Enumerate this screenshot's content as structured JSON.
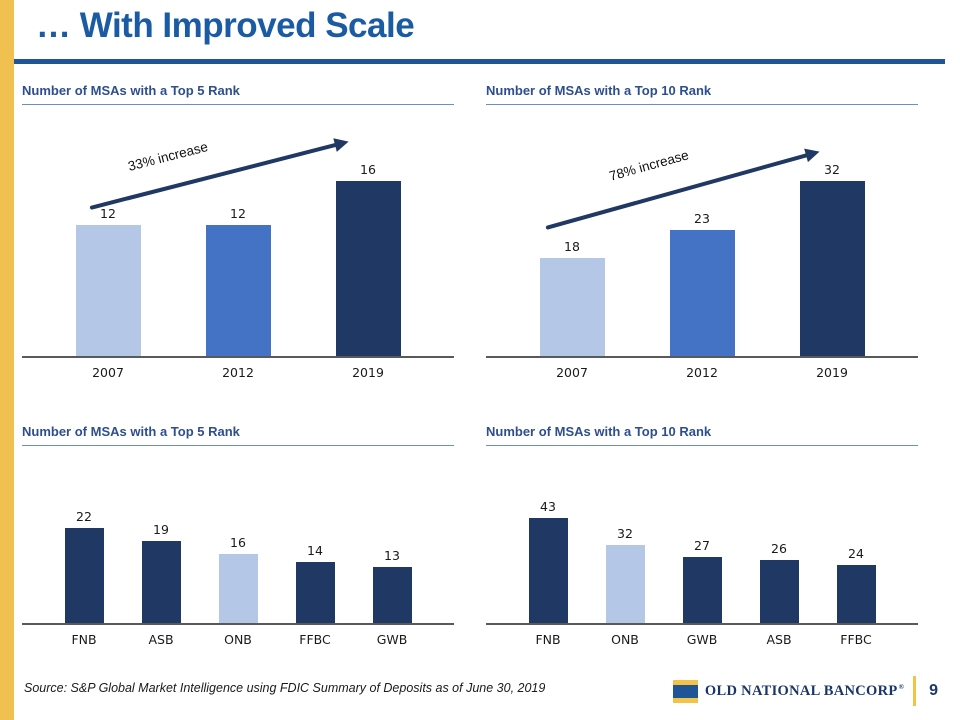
{
  "slide": {
    "title": "… With Improved Scale",
    "page_number": "9",
    "source": "Source: S&P Global Market Intelligence using FDIC Summary of Deposits as of June 30, 2019",
    "logo_text": "OLD NATIONAL BANCORP",
    "logo_reg_mark": "®"
  },
  "colors": {
    "accent_gold": "#F0C151",
    "title_blue": "#1A5BA4",
    "title_rule_blue": "#1F5597",
    "chart_header_blue": "#2E4E8F",
    "bar_light_blue": "#B4C7E7",
    "bar_medium_blue": "#4472C4",
    "bar_dark_navy": "#1F3864",
    "arrow_navy": "#1F3864",
    "axis_gray": "#595959"
  },
  "chart_data": [
    {
      "id": "top5-by-year",
      "type": "bar",
      "title": "Number of MSAs with a Top 5 Rank",
      "categories": [
        "2007",
        "2012",
        "2019"
      ],
      "values": [
        12,
        12,
        16
      ],
      "bar_colors": [
        "#B4C7E7",
        "#4472C4",
        "#1F3864"
      ],
      "annotation": "33% increase",
      "ylim": [
        0,
        20
      ],
      "grid": false,
      "legend": "none",
      "data_labels": true
    },
    {
      "id": "top10-by-year",
      "type": "bar",
      "title": "Number of MSAs with a Top 10 Rank",
      "categories": [
        "2007",
        "2012",
        "2019"
      ],
      "values": [
        18,
        23,
        32
      ],
      "bar_colors": [
        "#B4C7E7",
        "#4472C4",
        "#1F3864"
      ],
      "annotation": "78% increase",
      "ylim": [
        0,
        40
      ],
      "grid": false,
      "legend": "none",
      "data_labels": true
    },
    {
      "id": "top5-by-bank",
      "type": "bar",
      "title": "Number of MSAs with a Top 5 Rank",
      "categories": [
        "FNB",
        "ASB",
        "ONB",
        "FFBC",
        "GWB"
      ],
      "values": [
        22,
        19,
        16,
        14,
        13
      ],
      "bar_colors": [
        "#1F3864",
        "#1F3864",
        "#B4C7E7",
        "#1F3864",
        "#1F3864"
      ],
      "annotation": "",
      "ylim": [
        0,
        45
      ],
      "grid": false,
      "legend": "none",
      "data_labels": true
    },
    {
      "id": "top10-by-bank",
      "type": "bar",
      "title": "Number of MSAs with a Top 10 Rank",
      "categories": [
        "FNB",
        "ONB",
        "GWB",
        "ASB",
        "FFBC"
      ],
      "values": [
        43,
        32,
        27,
        26,
        24
      ],
      "bar_colors": [
        "#1F3864",
        "#B4C7E7",
        "#1F3864",
        "#1F3864",
        "#1F3864"
      ],
      "annotation": "",
      "ylim": [
        0,
        80
      ],
      "grid": false,
      "legend": "none",
      "data_labels": true
    }
  ]
}
